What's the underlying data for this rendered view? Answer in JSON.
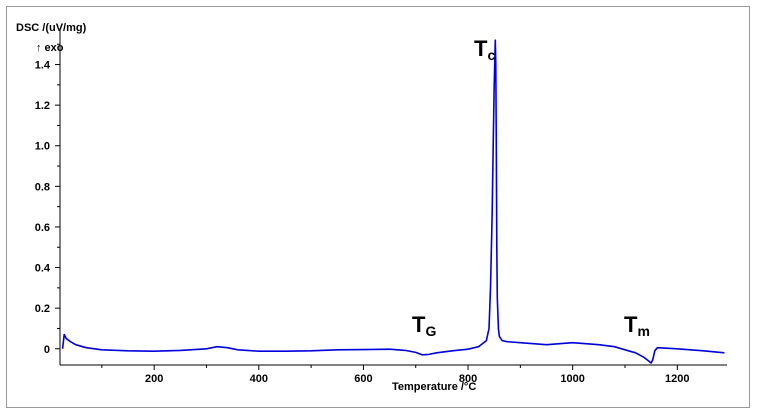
{
  "chart_data": {
    "type": "line",
    "ylabel": "DSC /(uV/mg)",
    "ylabel_sub": "↑ exo",
    "xlabel": "Temperature /°C",
    "xlim": [
      20,
      1295
    ],
    "ylim": [
      -0.08,
      1.58
    ],
    "xticks": [
      200,
      400,
      600,
      800,
      1000,
      1200
    ],
    "yticks": [
      0,
      0.2,
      0.4,
      0.6,
      0.8,
      1.0,
      1.2,
      1.4
    ],
    "ytick_labels": [
      "0",
      "0.2",
      "0.4",
      "0.6",
      "0.8",
      "1.0",
      "1.2",
      "1.4"
    ],
    "grid": false,
    "line_color": "#0000dd",
    "annotations": [
      {
        "main": "T",
        "sub": "c",
        "x": 852,
        "y": 1.52
      },
      {
        "main": "T",
        "sub": "G",
        "x": 712,
        "y": 0.04
      },
      {
        "main": "T",
        "sub": "m",
        "x": 1140,
        "y": 0.03
      }
    ],
    "series": [
      {
        "x": [
          25,
          28,
          32,
          40,
          50,
          70,
          100,
          150,
          200,
          250,
          300,
          320,
          340,
          360,
          400,
          450,
          500,
          550,
          600,
          650,
          680,
          700,
          712,
          725,
          740,
          770,
          800,
          820,
          835,
          840,
          843,
          846,
          848,
          850,
          852,
          853,
          854,
          855,
          856,
          858,
          860,
          865,
          875,
          900,
          950,
          1000,
          1050,
          1080,
          1100,
          1120,
          1135,
          1145,
          1150,
          1153,
          1157,
          1162,
          1175,
          1200,
          1250,
          1290
        ],
        "y": [
          0.0,
          0.07,
          0.05,
          0.035,
          0.02,
          0.005,
          -0.005,
          -0.01,
          -0.012,
          -0.008,
          0.0,
          0.01,
          0.005,
          -0.005,
          -0.012,
          -0.012,
          -0.01,
          -0.005,
          -0.004,
          -0.002,
          -0.008,
          -0.018,
          -0.03,
          -0.028,
          -0.02,
          -0.01,
          -0.002,
          0.01,
          0.04,
          0.1,
          0.3,
          0.65,
          1.0,
          1.3,
          1.52,
          1.4,
          1.0,
          0.5,
          0.25,
          0.1,
          0.06,
          0.04,
          0.035,
          0.03,
          0.02,
          0.03,
          0.02,
          0.01,
          -0.005,
          -0.02,
          -0.04,
          -0.06,
          -0.07,
          -0.055,
          -0.01,
          0.005,
          0.003,
          0.0,
          -0.01,
          -0.02
        ]
      }
    ]
  }
}
